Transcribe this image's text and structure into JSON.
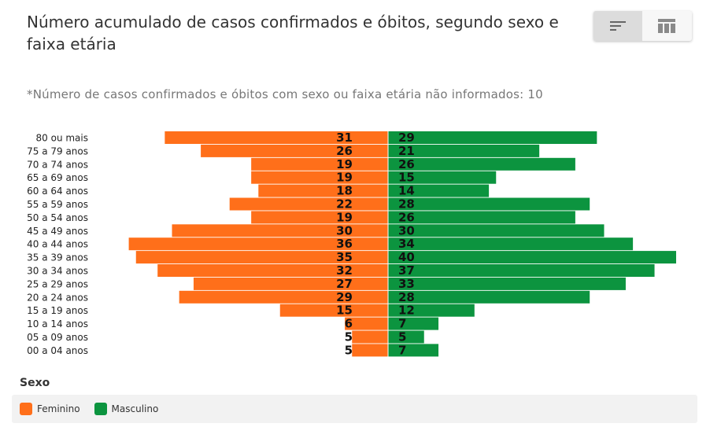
{
  "header": {
    "title": "Número acumulado de casos confirmados e óbitos, segundo sexo e faixa etária",
    "view_toggle": {
      "bar_icon": "bar-chart-icon",
      "table_icon": "table-icon",
      "active": "chart"
    }
  },
  "note": "*Número de casos confirmados e óbitos com sexo ou faixa etária não informados: 10",
  "legend": {
    "title": "Sexo",
    "items": [
      {
        "label": "Feminino",
        "color": "#ff6f1a"
      },
      {
        "label": "Masculino",
        "color": "#0c943f"
      }
    ]
  },
  "chart_data": {
    "type": "bar",
    "orientation": "horizontal-diverging",
    "categories": [
      "80 ou mais",
      "75 a 79 anos",
      "70 a 74 anos",
      "65 a 69 anos",
      "60 a 64 anos",
      "55 a 59 anos",
      "50 a 54 anos",
      "45 a 49 anos",
      "40 a 44 anos",
      "35 a 39 anos",
      "30 a 34 anos",
      "25 a 29 anos",
      "20 a 24 anos",
      "15 a 19 anos",
      "10 a 14 anos",
      "05 a 09 anos",
      "00 a 04 anos"
    ],
    "series": [
      {
        "name": "Feminino",
        "color": "#ff6f1a",
        "values": [
          31,
          26,
          19,
          19,
          18,
          22,
          19,
          30,
          36,
          35,
          32,
          27,
          29,
          15,
          6,
          5,
          5
        ]
      },
      {
        "name": "Masculino",
        "color": "#0c943f",
        "values": [
          29,
          21,
          26,
          15,
          14,
          28,
          26,
          30,
          34,
          40,
          37,
          33,
          28,
          12,
          7,
          5,
          7
        ]
      }
    ],
    "xlim": [
      0,
      40
    ],
    "legend_position": "bottom-left",
    "grid": false
  }
}
